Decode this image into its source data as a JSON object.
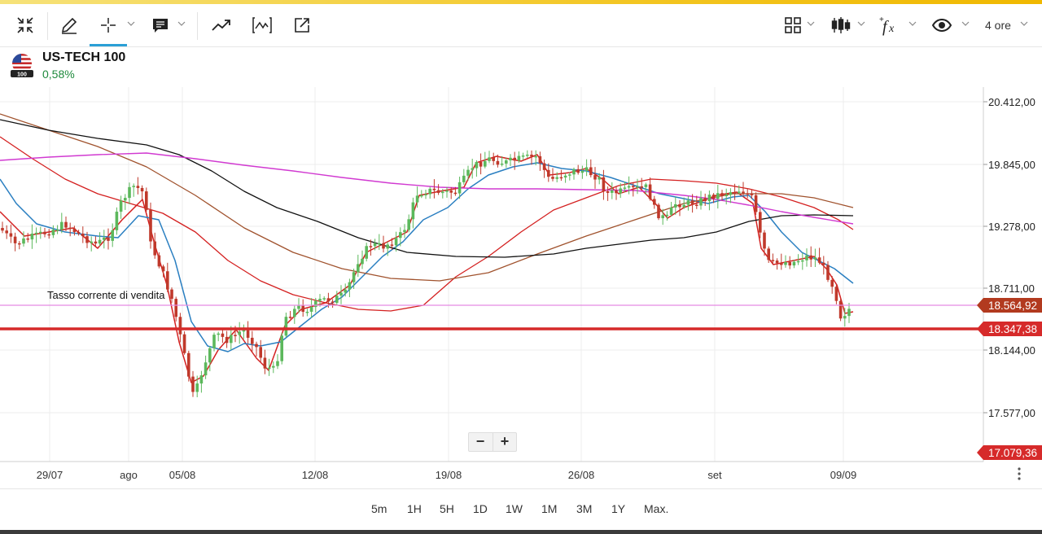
{
  "toolbar": {
    "icons": [
      "collapse-arrows-icon",
      "pencil-icon",
      "crosshair-icon",
      "comment-icon",
      "trend-line-icon",
      "indicator-chart-icon",
      "external-link-icon",
      "layout-grid-icon",
      "candlestick-icon",
      "function-fx-icon",
      "eye-icon"
    ],
    "timeframe": "4 ore"
  },
  "instrument": {
    "name": "US-TECH 100",
    "flag_badge": "100",
    "change": "0,58%"
  },
  "chart": {
    "price_labels": [
      "20.412,00",
      "19.845,00",
      "19.278,00",
      "18.711,00",
      "18.144,00",
      "17.577,00"
    ],
    "current_price_tag": "18.564,92",
    "sell_rate_tag": "18.347,38",
    "low_tag": "17.079,36",
    "sell_rate_label": "Tasso corrente di vendita",
    "date_labels": [
      "29/07",
      "ago",
      "05/08",
      "12/08",
      "19/08",
      "26/08",
      "set",
      "09/09"
    ],
    "colors": {
      "up": "#5cb85c",
      "down": "#c0392b",
      "sell_line": "#d62a2a",
      "current_line": "#e58ae3",
      "tag_current": "#b23a1f",
      "tag_sell": "#d62a2a",
      "tag_low": "#d62a2a"
    }
  },
  "zoom": {
    "minus": "−",
    "plus": "+"
  },
  "periods": [
    "5m",
    "1H",
    "5H",
    "1D",
    "1W",
    "1M",
    "3M",
    "1Y",
    "Max."
  ]
}
